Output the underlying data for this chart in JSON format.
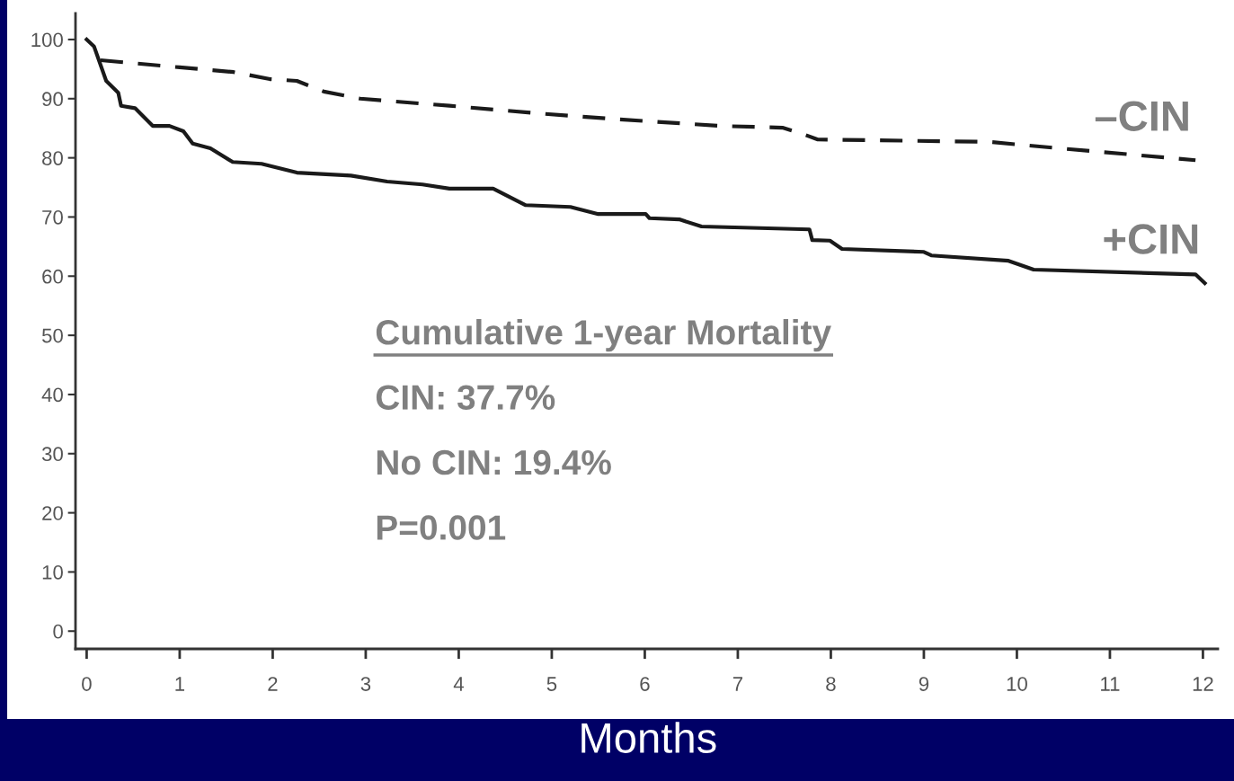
{
  "chart_data": {
    "type": "line",
    "xlabel": "Months",
    "xlim": [
      -0.12,
      12.16
    ],
    "xticks": [
      0,
      1,
      2,
      3,
      4,
      5,
      6,
      7,
      8,
      9,
      10,
      11,
      12
    ],
    "ylim": [
      -3,
      104.4
    ],
    "yticks": [
      0,
      10,
      20,
      30,
      40,
      50,
      60,
      70,
      80,
      90,
      100
    ],
    "grid": false,
    "legend": false,
    "marker": "none",
    "series": [
      {
        "name": "–CIN",
        "color": "#1a1a1a",
        "line_style": "dashed",
        "x": [
          0.15,
          1.0,
          1.58,
          1.97,
          2.26,
          2.55,
          2.94,
          3.9,
          4.87,
          5.64,
          6.8,
          7.48,
          7.67,
          7.86,
          9.7,
          10.47,
          11.92
        ],
        "values": [
          96.5,
          95.3,
          94.5,
          93.3,
          93,
          91.2,
          90,
          88.8,
          87.5,
          86.6,
          85.4,
          85.1,
          84.2,
          83.1,
          82.7,
          81.6,
          79.6
        ]
      },
      {
        "name": "+CIN",
        "color": "#1a1a1a",
        "line_style": "solid",
        "x": [
          0,
          0.08,
          0.21,
          0.34,
          0.37,
          0.52,
          0.71,
          0.89,
          1.04,
          1.14,
          1.33,
          1.57,
          1.88,
          2.26,
          2.84,
          3.23,
          3.61,
          3.9,
          4.37,
          4.72,
          5.2,
          5.5,
          6.01,
          6.05,
          6.37,
          6.61,
          7.77,
          7.8,
          7.99,
          8.12,
          9.0,
          9.08,
          9.91,
          10.18,
          11.92,
          12.02
        ],
        "values": [
          100,
          98.8,
          93,
          91,
          88.8,
          88.4,
          85.4,
          85.4,
          84.5,
          82.4,
          81.6,
          79.3,
          79,
          77.5,
          77,
          76,
          75.5,
          74.8,
          74.8,
          72,
          71.7,
          70.5,
          70.5,
          69.8,
          69.6,
          68.4,
          67.9,
          66.1,
          66,
          64.6,
          64.1,
          63.5,
          62.6,
          61.1,
          60.3,
          58.8
        ]
      }
    ],
    "annotations": [
      "Cumulative 1-year Mortality",
      "CIN: 37.7%",
      "No CIN: 19.4%",
      "P=0.001"
    ]
  }
}
